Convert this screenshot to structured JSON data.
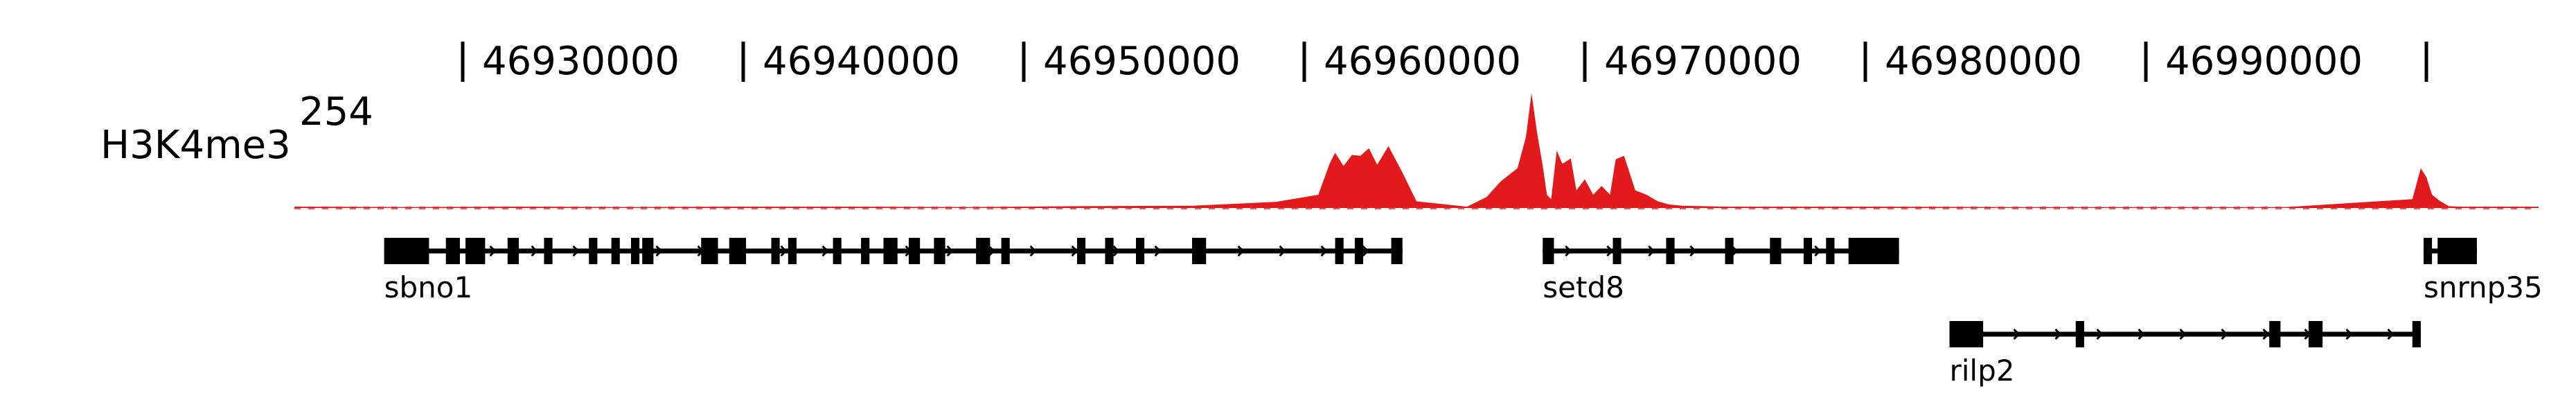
{
  "track": {
    "name": "H3K4me3",
    "max_label": "254",
    "color": "#e31a1c",
    "max_value": 254
  },
  "axis": {
    "ticks": [
      {
        "pos": 46925000,
        "label": "46930000"
      },
      {
        "pos": 46935000,
        "label": "46940000"
      },
      {
        "pos": 46945000,
        "label": "46950000"
      },
      {
        "pos": 46955000,
        "label": "46960000"
      },
      {
        "pos": 46965000,
        "label": "46970000"
      },
      {
        "pos": 46975000,
        "label": "46980000"
      },
      {
        "pos": 46985000,
        "label": "46990000"
      },
      {
        "pos": 46995000,
        "label": ""
      }
    ]
  },
  "chart_data": {
    "type": "area",
    "region": [
      46919000,
      46999000
    ],
    "series": [
      {
        "x": [
          46919000,
          46923000,
          46927000,
          46931000,
          46935000,
          46939000,
          46943000,
          46947000,
          46951000,
          46954000,
          46955500,
          46955900,
          46956100,
          46956400,
          46956700,
          46957000,
          46957300,
          46957600,
          46958000,
          46958500,
          46959000,
          46960800,
          46961500,
          46962000,
          46962600,
          46962900,
          46963100,
          46963300,
          46963500,
          46963650,
          46963800,
          46964000,
          46964200,
          46964500,
          46964700,
          46965000,
          46965300,
          46965600,
          46965900,
          46966100,
          46966400,
          46966800,
          46967200,
          46967600,
          46968000,
          46968500,
          46970000,
          46975000,
          46980000,
          46985000,
          46990000,
          46994500,
          46994800,
          46995000,
          46995200,
          46995500,
          46995800,
          46996200,
          46999000
        ],
        "y": [
          3,
          2,
          3,
          2,
          3,
          3,
          2,
          4,
          5,
          14,
          30,
          100,
          125,
          95,
          120,
          118,
          135,
          98,
          140,
          80,
          15,
          3,
          25,
          60,
          90,
          160,
          260,
          170,
          95,
          30,
          20,
          130,
          100,
          112,
          40,
          65,
          30,
          50,
          30,
          110,
          118,
          40,
          30,
          15,
          8,
          5,
          3,
          3,
          2,
          2,
          2,
          20,
          90,
          70,
          30,
          15,
          4,
          3,
          3
        ]
      }
    ]
  },
  "genes": [
    {
      "name": "sbno1",
      "row": 0,
      "start": 46922200,
      "end": 46958500,
      "exons": [
        [
          46922200,
          46923800
        ],
        [
          46924400,
          46924900
        ],
        [
          46925100,
          46925800
        ],
        [
          46926600,
          46927000
        ],
        [
          46927900,
          46928200
        ],
        [
          46929500,
          46929800
        ],
        [
          46930300,
          46930600
        ],
        [
          46931000,
          46931300
        ],
        [
          46931400,
          46931800
        ],
        [
          46933500,
          46934100
        ],
        [
          46934500,
          46935100
        ],
        [
          46936000,
          46936300
        ],
        [
          46936600,
          46936900
        ],
        [
          46938200,
          46938500
        ],
        [
          46939200,
          46939500
        ],
        [
          46940000,
          46940500
        ],
        [
          46940900,
          46941300
        ],
        [
          46941800,
          46942200
        ],
        [
          46943300,
          46943800
        ],
        [
          46944200,
          46944500
        ],
        [
          46946900,
          46947200
        ],
        [
          46947900,
          46948200
        ],
        [
          46949000,
          46949300
        ],
        [
          46951000,
          46951500
        ],
        [
          46956100,
          46956400
        ],
        [
          46956800,
          46957100
        ],
        [
          46958100,
          46958500
        ]
      ]
    },
    {
      "name": "setd8",
      "row": 0,
      "start": 46963500,
      "end": 46976200,
      "exons": [
        [
          46963500,
          46963900
        ],
        [
          46966000,
          46966200
        ],
        [
          46967900,
          46968200
        ],
        [
          46970000,
          46970300
        ],
        [
          46971600,
          46972000
        ],
        [
          46972800,
          46973100
        ],
        [
          46973600,
          46973900
        ],
        [
          46974400,
          46976200
        ]
      ]
    },
    {
      "name": "snrnp35",
      "row": 0,
      "start": 46994900,
      "end": 46996800,
      "exons": [
        [
          46994900,
          46995200
        ],
        [
          46995400,
          46996800
        ]
      ]
    },
    {
      "name": "rilp2",
      "row": 1,
      "start": 46978000,
      "end": 46994800,
      "exons": [
        [
          46978000,
          46979200
        ],
        [
          46982500,
          46982800
        ],
        [
          46989400,
          46989800
        ],
        [
          46990800,
          46991300
        ],
        [
          46994500,
          46994800
        ]
      ]
    }
  ]
}
